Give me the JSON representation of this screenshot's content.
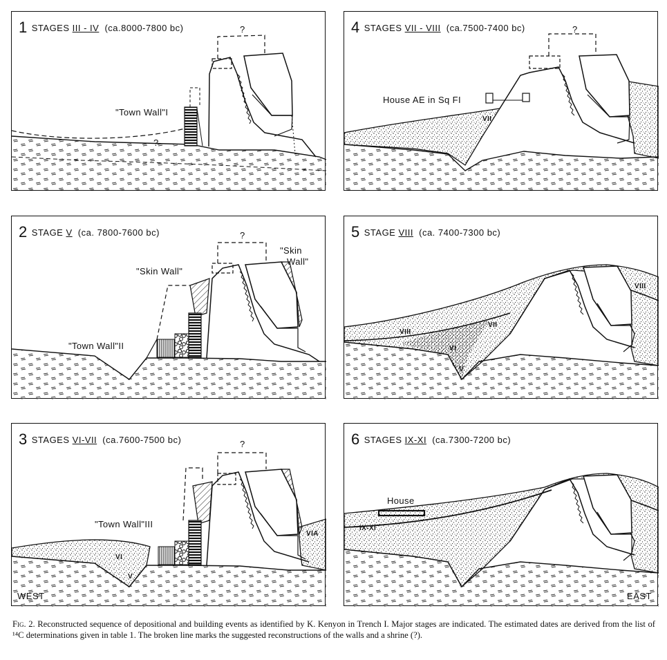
{
  "panels": [
    {
      "number": "1",
      "stage_prefix": "STAGES",
      "stage": "III - IV",
      "dates": "(ca.8000-7800 bc)",
      "labels": {
        "question_top": "?",
        "town_wall": "\"Town Wall\"I",
        "question_mid": "?"
      }
    },
    {
      "number": "4",
      "stage_prefix": "STAGES",
      "stage": "VII - VIII",
      "dates": "(ca.7500-7400 bc)",
      "labels": {
        "question_top": "?",
        "house": "House AE in Sq FI",
        "layer_vii": "VII"
      }
    },
    {
      "number": "2",
      "stage_prefix": "STAGE",
      "stage": "V",
      "dates": "(ca. 7800-7600 bc)",
      "labels": {
        "question_top": "?",
        "skin_wall_left": "\"Skin Wall\"",
        "skin_wall_right_1": "\"Skin",
        "skin_wall_right_2": "Wall\"",
        "town_wall": "\"Town Wall\"II"
      }
    },
    {
      "number": "5",
      "stage_prefix": "STAGE",
      "stage": "VIII",
      "dates": "(ca. 7400-7300 bc)",
      "labels": {
        "viii_right": "VIII",
        "viii_left": "VIII",
        "vii": "VII",
        "vi": "VI",
        "v": "V"
      }
    },
    {
      "number": "3",
      "stage_prefix": "STAGES",
      "stage": "VI-VII",
      "dates": "(ca.7600-7500 bc)",
      "labels": {
        "question_top": "?",
        "town_wall": "\"Town Wall\"III",
        "vi": "VI",
        "v": "V",
        "via": "VIA",
        "corner": "WEST"
      }
    },
    {
      "number": "6",
      "stage_prefix": "STAGES",
      "stage": "IX-XI",
      "dates": "(ca.7300-7200 bc)",
      "labels": {
        "house": "House",
        "ix_xi": "IX-XI",
        "corner": "EAST"
      }
    }
  ],
  "caption": {
    "fig_label": "Fig. 2.",
    "text": "Reconstructed sequence of depositional and building events as identified by K. Kenyon in Trench I. Major stages are indicated. The estimated dates are derived from the list of ¹⁴C determinations given in table 1. The broken line marks the suggested reconstructions of the walls and a shrine (?)."
  }
}
